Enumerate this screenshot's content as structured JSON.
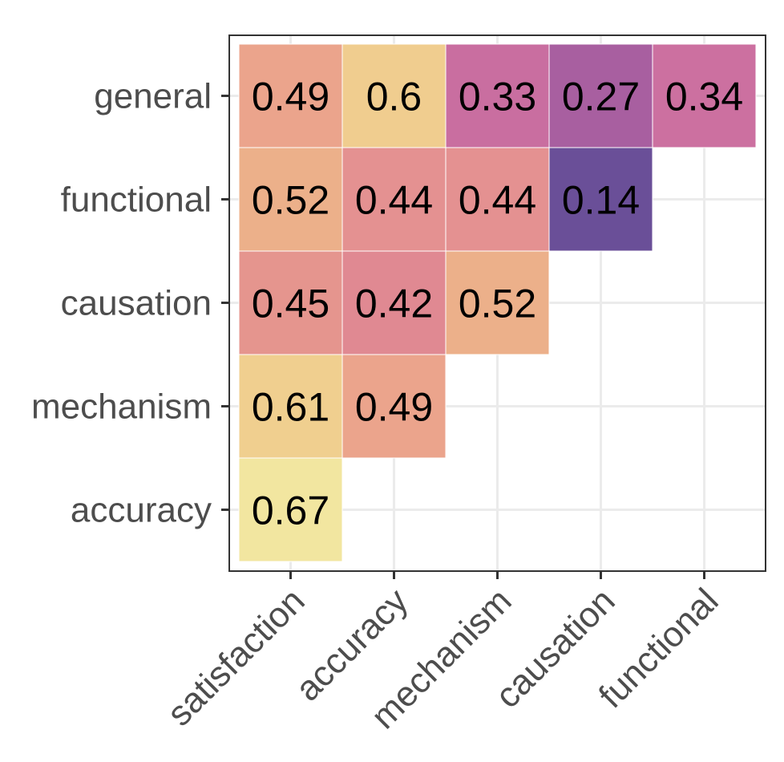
{
  "chart_data": {
    "type": "heatmap",
    "title": "",
    "xlabel": "",
    "ylabel": "",
    "x_categories": [
      "satisfaction",
      "accuracy",
      "mechanism",
      "causation",
      "functional"
    ],
    "y_categories": [
      "accuracy",
      "mechanism",
      "causation",
      "functional",
      "general"
    ],
    "cells": [
      {
        "x": "satisfaction",
        "y": "accuracy",
        "value": 0.67,
        "label": "0.67",
        "color": "#F2E6A0"
      },
      {
        "x": "satisfaction",
        "y": "mechanism",
        "value": 0.61,
        "label": "0.61",
        "color": "#F0CF8F"
      },
      {
        "x": "accuracy",
        "y": "mechanism",
        "value": 0.49,
        "label": "0.49",
        "color": "#EBA48C"
      },
      {
        "x": "satisfaction",
        "y": "causation",
        "value": 0.45,
        "label": "0.45",
        "color": "#E5958E"
      },
      {
        "x": "accuracy",
        "y": "causation",
        "value": 0.42,
        "label": "0.42",
        "color": "#E08992"
      },
      {
        "x": "mechanism",
        "y": "causation",
        "value": 0.52,
        "label": "0.52",
        "color": "#ECB08A"
      },
      {
        "x": "satisfaction",
        "y": "functional",
        "value": 0.52,
        "label": "0.52",
        "color": "#ECB08A"
      },
      {
        "x": "accuracy",
        "y": "functional",
        "value": 0.44,
        "label": "0.44",
        "color": "#E49191"
      },
      {
        "x": "mechanism",
        "y": "functional",
        "value": 0.44,
        "label": "0.44",
        "color": "#E49191"
      },
      {
        "x": "causation",
        "y": "functional",
        "value": 0.14,
        "label": "0.14",
        "color": "#6A4F98"
      },
      {
        "x": "satisfaction",
        "y": "general",
        "value": 0.49,
        "label": "0.49",
        "color": "#EBA48C"
      },
      {
        "x": "accuracy",
        "y": "general",
        "value": 0.6,
        "label": "0.6",
        "color": "#F0CD8F"
      },
      {
        "x": "mechanism",
        "y": "general",
        "value": 0.33,
        "label": "0.33",
        "color": "#C96EA0"
      },
      {
        "x": "causation",
        "y": "general",
        "value": 0.27,
        "label": "0.27",
        "color": "#A85FA0"
      },
      {
        "x": "functional",
        "y": "general",
        "value": 0.34,
        "label": "0.34",
        "color": "#CC70A0"
      }
    ],
    "grid": true,
    "legend": "none"
  }
}
